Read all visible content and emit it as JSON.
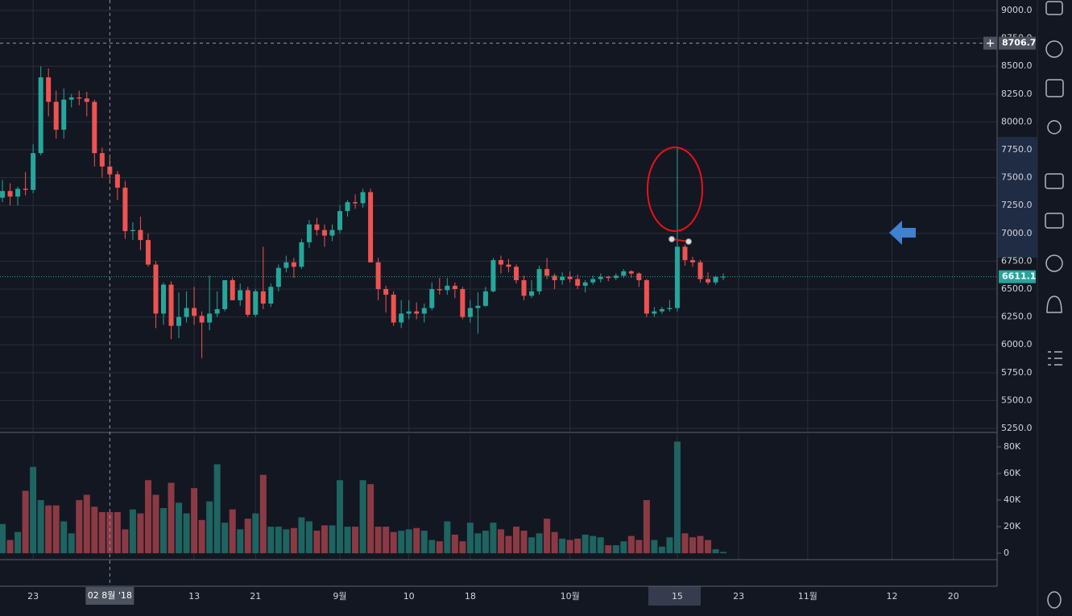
{
  "chart_data": {
    "type": "candlestick",
    "open": [
      7320,
      7380,
      7330,
      7400,
      7390,
      7720,
      8400,
      8180,
      7930,
      8200,
      8220,
      8210,
      8180,
      7720,
      7600,
      7530,
      7410,
      7020,
      7030,
      6940,
      6720,
      6280,
      6540,
      6170,
      6250,
      6330,
      6260,
      6200,
      6280,
      6320,
      6580,
      6400,
      6490,
      6270,
      6480,
      6370,
      6520,
      6690,
      6740,
      6700,
      6920,
      7080,
      7030,
      6980,
      7030,
      7200,
      7280,
      7270,
      7370,
      6740,
      6500,
      6450,
      6200,
      6280,
      6300,
      6280,
      6330,
      6500,
      6490,
      6530,
      6500,
      6250,
      6330,
      6350,
      6480,
      6760,
      6720,
      6700,
      6580,
      6440,
      6480,
      6680,
      6620,
      6580,
      6610,
      6590,
      6530,
      6560,
      6590,
      6610,
      6600,
      6620,
      6660,
      6640,
      6580,
      6280,
      6300,
      6320,
      6330,
      6880,
      6760,
      6740,
      6590,
      6560,
      6610
    ],
    "high": [
      7480,
      7450,
      7420,
      7550,
      7800,
      8500,
      8480,
      8280,
      8300,
      8250,
      8280,
      8270,
      8200,
      7770,
      7680,
      7560,
      7470,
      7100,
      7150,
      7000,
      6750,
      6560,
      6570,
      6470,
      6480,
      6520,
      6300,
      6620,
      6480,
      6580,
      6600,
      6550,
      6520,
      6500,
      6880,
      6550,
      6720,
      6800,
      6780,
      6950,
      7120,
      7140,
      7080,
      7080,
      7250,
      7300,
      7350,
      7400,
      7400,
      6780,
      6530,
      6480,
      6400,
      6400,
      6380,
      6370,
      6560,
      6600,
      6600,
      6560,
      6520,
      6400,
      6470,
      6520,
      6780,
      6800,
      6770,
      6720,
      6620,
      6580,
      6710,
      6780,
      6640,
      6650,
      6660,
      6630,
      6580,
      6620,
      6640,
      6620,
      6640,
      6680,
      6670,
      6650,
      6590,
      6340,
      6340,
      6400,
      7780,
      6900,
      6790,
      6760,
      6650,
      6620,
      6640
    ],
    "low": [
      7280,
      7250,
      7250,
      7340,
      7360,
      7700,
      8050,
      7850,
      7850,
      8130,
      8150,
      8050,
      7600,
      7500,
      7460,
      7300,
      6950,
      6940,
      6850,
      6700,
      6150,
      6180,
      6050,
      6060,
      6200,
      6180,
      5880,
      6130,
      6250,
      6300,
      6400,
      6350,
      6250,
      6250,
      6320,
      6340,
      6480,
      6650,
      6600,
      6680,
      6870,
      6980,
      6880,
      6930,
      7000,
      7150,
      7220,
      7230,
      6740,
      6400,
      6290,
      6170,
      6150,
      6230,
      6230,
      6200,
      6310,
      6450,
      6450,
      6420,
      6230,
      6200,
      6100,
      6340,
      6470,
      6640,
      6650,
      6550,
      6400,
      6420,
      6450,
      6590,
      6500,
      6540,
      6560,
      6500,
      6470,
      6540,
      6560,
      6570,
      6580,
      6600,
      6600,
      6520,
      6250,
      6250,
      6280,
      6300,
      6300,
      6710,
      6700,
      6560,
      6540,
      6540,
      6580
    ],
    "close": [
      7380,
      7330,
      7400,
      7390,
      7720,
      8400,
      8180,
      7930,
      8200,
      8220,
      8210,
      8180,
      7720,
      7600,
      7530,
      7410,
      7020,
      7030,
      6940,
      6720,
      6280,
      6540,
      6170,
      6250,
      6330,
      6260,
      6200,
      6280,
      6320,
      6580,
      6400,
      6490,
      6270,
      6480,
      6370,
      6520,
      6690,
      6740,
      6700,
      6920,
      7080,
      7030,
      6980,
      7030,
      7200,
      7280,
      7270,
      7370,
      6740,
      6500,
      6450,
      6200,
      6280,
      6300,
      6280,
      6330,
      6500,
      6490,
      6530,
      6500,
      6250,
      6330,
      6350,
      6480,
      6760,
      6720,
      6700,
      6580,
      6440,
      6480,
      6680,
      6620,
      6580,
      6610,
      6590,
      6530,
      6560,
      6590,
      6610,
      6600,
      6620,
      6660,
      6640,
      6580,
      6280,
      6300,
      6320,
      6330,
      6880,
      6760,
      6740,
      6590,
      6560,
      6610,
      6611.1
    ],
    "up_color": "#26a69a",
    "down_color": "#ef5350",
    "xlim": [
      -0.32,
      129.7
    ],
    "xticks": [
      {
        "value": 4,
        "label": "23"
      },
      {
        "value": 25,
        "label": "13"
      },
      {
        "value": 33,
        "label": "21"
      },
      {
        "value": 44,
        "label": "9월"
      },
      {
        "value": 53,
        "label": "10"
      },
      {
        "value": 61,
        "label": "18"
      },
      {
        "value": 74,
        "label": "10월"
      },
      {
        "value": 88,
        "label": "15"
      },
      {
        "value": 96,
        "label": "23"
      },
      {
        "value": 105,
        "label": "11월"
      },
      {
        "value": 116,
        "label": "12"
      },
      {
        "value": 124,
        "label": "20"
      }
    ],
    "ylim": [
      5214,
      9094
    ],
    "yticks": [
      {
        "value": 5250,
        "label": "5250.0"
      },
      {
        "value": 5500,
        "label": "5500.0"
      },
      {
        "value": 5750,
        "label": "5750.0"
      },
      {
        "value": 6000,
        "label": "6000.0"
      },
      {
        "value": 6250,
        "label": "6250.0"
      },
      {
        "value": 6500,
        "label": "6500.0"
      },
      {
        "value": 6750,
        "label": "6750.0"
      },
      {
        "value": 7000,
        "label": "7000.0"
      },
      {
        "value": 7250,
        "label": "7250.0"
      },
      {
        "value": 7500,
        "label": "7500.0"
      },
      {
        "value": 7750,
        "label": "7750.0"
      },
      {
        "value": 8000,
        "label": "8000.0"
      },
      {
        "value": 8250,
        "label": "8250.0"
      },
      {
        "value": 8500,
        "label": "8500.0"
      },
      {
        "value": 8750,
        "label": "8750.0"
      },
      {
        "value": 9000,
        "label": "9000.0"
      }
    ],
    "grid": true,
    "volume": {
      "values": [
        22000,
        10000,
        16000,
        47000,
        65000,
        40000,
        36000,
        36000,
        24000,
        15000,
        40000,
        44000,
        35000,
        31000,
        31000,
        31000,
        18000,
        33000,
        30000,
        55000,
        44000,
        34000,
        53000,
        38000,
        30000,
        49000,
        25000,
        39000,
        67000,
        23000,
        33000,
        18000,
        26000,
        30000,
        59000,
        20000,
        20000,
        18000,
        19000,
        27000,
        24000,
        17000,
        21000,
        21000,
        55000,
        20000,
        20000,
        55000,
        52000,
        20000,
        20000,
        16000,
        17000,
        18000,
        19000,
        17000,
        10000,
        9000,
        24000,
        14000,
        9000,
        23000,
        15000,
        17000,
        23000,
        18000,
        13000,
        20000,
        17000,
        12000,
        15000,
        26000,
        16000,
        11000,
        10000,
        11000,
        14000,
        13000,
        12000,
        6000,
        6000,
        9000,
        13000,
        10000,
        40000,
        10000,
        5000,
        12000,
        84000,
        15000,
        12000,
        13000,
        10000,
        3000,
        1000
      ],
      "up_color": "#1e6460",
      "down_color": "#8b3a44",
      "ylim": [
        -4800,
        89100
      ],
      "yticks": [
        {
          "value": 0,
          "label": "0"
        },
        {
          "value": 20000,
          "label": "20K"
        },
        {
          "value": 40000,
          "label": "40K"
        },
        {
          "value": 60000,
          "label": "60K"
        },
        {
          "value": 80000,
          "label": "80K"
        }
      ]
    },
    "crosshair": {
      "price": 8706.7,
      "date_value": 14,
      "date_label": "02 8월 '18"
    },
    "last_price": 6611.1
  }
}
